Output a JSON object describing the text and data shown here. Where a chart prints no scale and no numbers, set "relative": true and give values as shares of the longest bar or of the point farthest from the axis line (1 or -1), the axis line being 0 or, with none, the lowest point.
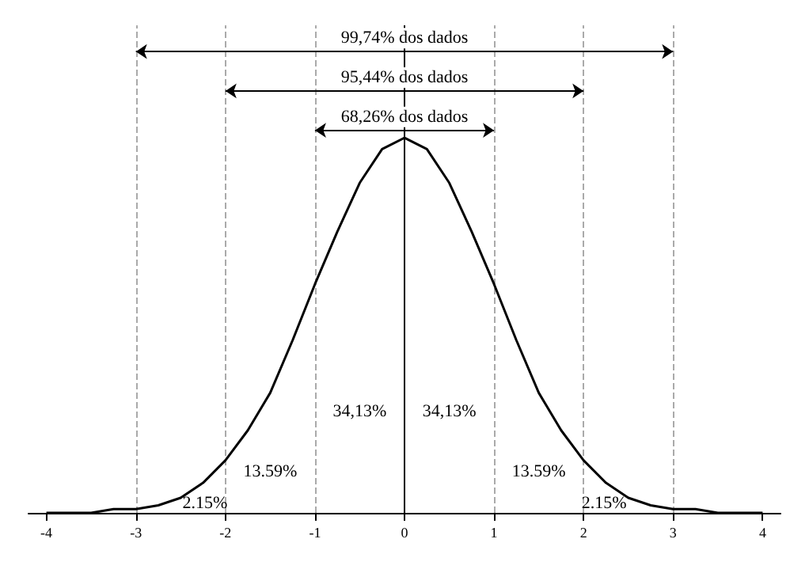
{
  "chart_data": {
    "type": "line",
    "relative": true,
    "line_style": "solid",
    "marker": "none",
    "grid": false,
    "x": [
      -4,
      -3.75,
      -3.5,
      -3.25,
      -3,
      -2.75,
      -2.5,
      -2.25,
      -2,
      -1.75,
      -1.5,
      -1.25,
      -1,
      -0.75,
      -0.5,
      -0.25,
      0,
      0.25,
      0.5,
      0.75,
      1,
      1.25,
      1.5,
      1.75,
      2,
      2.25,
      2.5,
      2.75,
      3,
      3.25,
      3.5,
      3.75,
      4
    ],
    "series": [
      {
        "color": "#000000",
        "values": [
          0.0,
          0.0,
          0.0,
          0.01,
          0.01,
          0.02,
          0.04,
          0.08,
          0.14,
          0.22,
          0.32,
          0.46,
          0.61,
          0.75,
          0.88,
          0.97,
          1,
          0.97,
          0.88,
          0.75,
          0.61,
          0.46,
          0.32,
          0.22,
          0.14,
          0.08,
          0.04,
          0.02,
          0.01,
          0.01,
          0.0,
          0.0,
          0.0
        ]
      }
    ],
    "xlim": [
      -4.2,
      4.2
    ],
    "xticks": [
      -4,
      -3,
      -2,
      -1,
      0,
      1,
      2,
      3,
      4
    ],
    "ref_lines": [
      {
        "axis": "x",
        "value": -3,
        "color": "#aaaaaa",
        "line_style": "dashed"
      },
      {
        "axis": "x",
        "value": -2,
        "color": "#aaaaaa",
        "line_style": "dashed"
      },
      {
        "axis": "x",
        "value": -1,
        "color": "#aaaaaa",
        "line_style": "dashed"
      },
      {
        "axis": "x",
        "value": 0,
        "color": "#000000",
        "line_style": "solid"
      },
      {
        "axis": "x",
        "value": 1,
        "color": "#aaaaaa",
        "line_style": "dashed"
      },
      {
        "axis": "x",
        "value": 2,
        "color": "#aaaaaa",
        "line_style": "dashed"
      },
      {
        "axis": "x",
        "value": 3,
        "color": "#aaaaaa",
        "line_style": "dashed"
      }
    ],
    "annotations": [
      "99,74% dos dados",
      "95,44% dos dados",
      "68,26% dos dados",
      "2.15%",
      "13.59%",
      "34,13%",
      "34,13%",
      "13.59%",
      "2.15%"
    ]
  }
}
